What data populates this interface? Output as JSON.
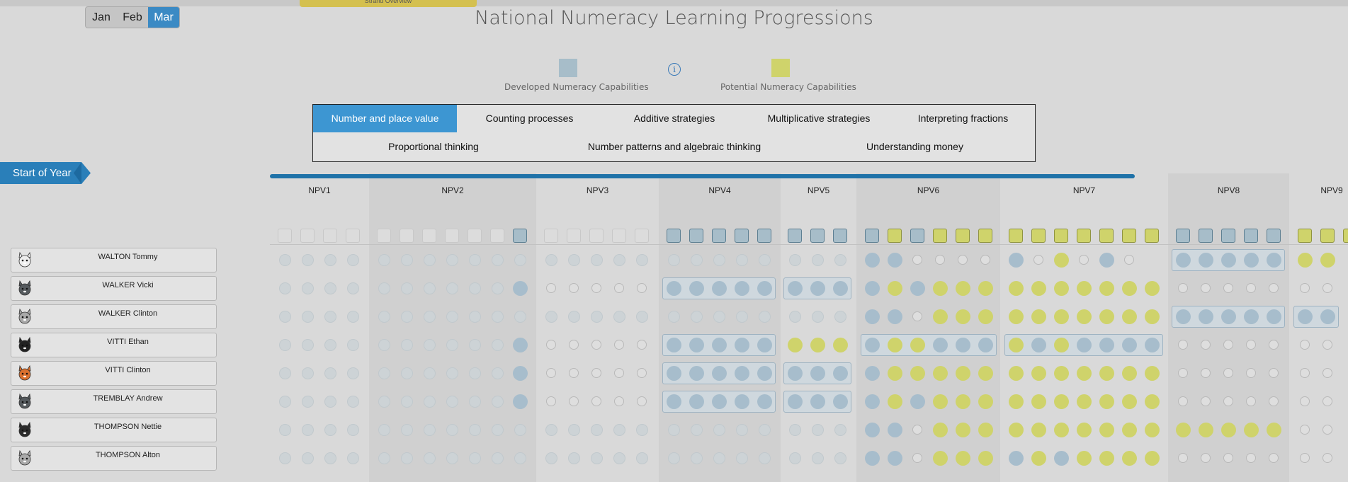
{
  "header": {
    "strand_tab": "Strand Overview",
    "title": "National Numeracy Learning Progressions"
  },
  "months": [
    {
      "label": "Jan",
      "active": false
    },
    {
      "label": "Feb",
      "active": false
    },
    {
      "label": "Mar",
      "active": true
    }
  ],
  "legend": {
    "developed": {
      "label": "Developed Numeracy Capabilities",
      "color": "#a7bdc9"
    },
    "potential": {
      "label": "Potential Numeracy Capabilities",
      "color": "#cfd36b"
    },
    "info_icon": "info-circle-icon"
  },
  "strands": [
    {
      "label": "Number and place value",
      "active": true
    },
    {
      "label": "Counting processes",
      "active": false
    },
    {
      "label": "Additive strategies",
      "active": false
    },
    {
      "label": "Multiplicative strategies",
      "active": false
    },
    {
      "label": "Interpreting fractions",
      "active": false
    },
    {
      "label": "Proportional thinking",
      "active": false
    },
    {
      "label": "Number patterns and algebraic thinking",
      "active": false
    },
    {
      "label": "Understanding money",
      "active": false
    }
  ],
  "start_of_year_label": "Start of Year",
  "levels": [
    {
      "code": "NPV1",
      "boxes": "eeee"
    },
    {
      "code": "NPV2",
      "boxes": "eeeeeeb"
    },
    {
      "code": "NPV3",
      "boxes": "eeeee"
    },
    {
      "code": "NPV4",
      "boxes": "bbbbb"
    },
    {
      "code": "NPV5",
      "boxes": "bbb"
    },
    {
      "code": "NPV6",
      "boxes": "bgbggg"
    },
    {
      "code": "NPV7",
      "boxes": "ggggggg"
    },
    {
      "code": "NPV8",
      "boxes": "bbbbb"
    },
    {
      "code": "NPV9",
      "boxes": "ggg"
    }
  ],
  "students": [
    {
      "name": "WALTON Tommy",
      "avatar": "panda-avatar-icon",
      "rows": [
        "ffff",
        "fffffff",
        "fffff",
        "fffff",
        "fff",
        "bboooo",
        "bogobo",
        "bbbbb",
        "gg"
      ],
      "groups": [
        7
      ]
    },
    {
      "name": "WALKER Vicki",
      "avatar": "wolf-avatar-icon",
      "rows": [
        "ffff",
        "ffffffb",
        "ooooo",
        "bbbbb",
        "bbb",
        "bgbggg",
        "ggggggg",
        "ooooo",
        "oo"
      ],
      "groups": [
        3,
        4
      ]
    },
    {
      "name": "WALKER Clinton",
      "avatar": "rabbit-avatar-icon",
      "rows": [
        "ffff",
        "fffffff",
        "fffff",
        "fffff",
        "fff",
        "bboggg",
        "ggggggg",
        "bbbbb",
        "bb"
      ],
      "groups": [
        7,
        8
      ]
    },
    {
      "name": "VITTI Ethan",
      "avatar": "penguin-avatar-icon",
      "rows": [
        "ffff",
        "ffffffb",
        "ooooo",
        "bbbbb",
        "ggg",
        "bggbbb",
        "gbgbbbb",
        "ooooo",
        "oo"
      ],
      "groups": [
        3,
        5,
        6
      ]
    },
    {
      "name": "VITTI Clinton",
      "avatar": "fox-avatar-icon",
      "rows": [
        "ffff",
        "ffffffb",
        "ooooo",
        "bbbbb",
        "bbb",
        "bggggg",
        "ggggggg",
        "ooooo",
        "oo"
      ],
      "groups": [
        3,
        4
      ]
    },
    {
      "name": "TREMBLAY Andrew",
      "avatar": "wolf-avatar-icon",
      "rows": [
        "ffff",
        "ffffffb",
        "ooooo",
        "bbbbb",
        "bbb",
        "bgbggg",
        "ggggggg",
        "ooooo",
        "oo"
      ],
      "groups": [
        3,
        4
      ]
    },
    {
      "name": "THOMPSON Nettie",
      "avatar": "cat-avatar-icon",
      "rows": [
        "ffff",
        "fffffff",
        "fffff",
        "fffff",
        "fff",
        "bboggg",
        "ggggggg",
        "ggggg",
        "oo"
      ],
      "groups": []
    },
    {
      "name": "THOMPSON Alton",
      "avatar": "rabbit-avatar-icon",
      "rows": [
        "ffff",
        "fffffff",
        "fffff",
        "fffff",
        "fff",
        "bboggg",
        "bgbgggg",
        "ooooo",
        "oo"
      ],
      "groups": []
    }
  ]
}
